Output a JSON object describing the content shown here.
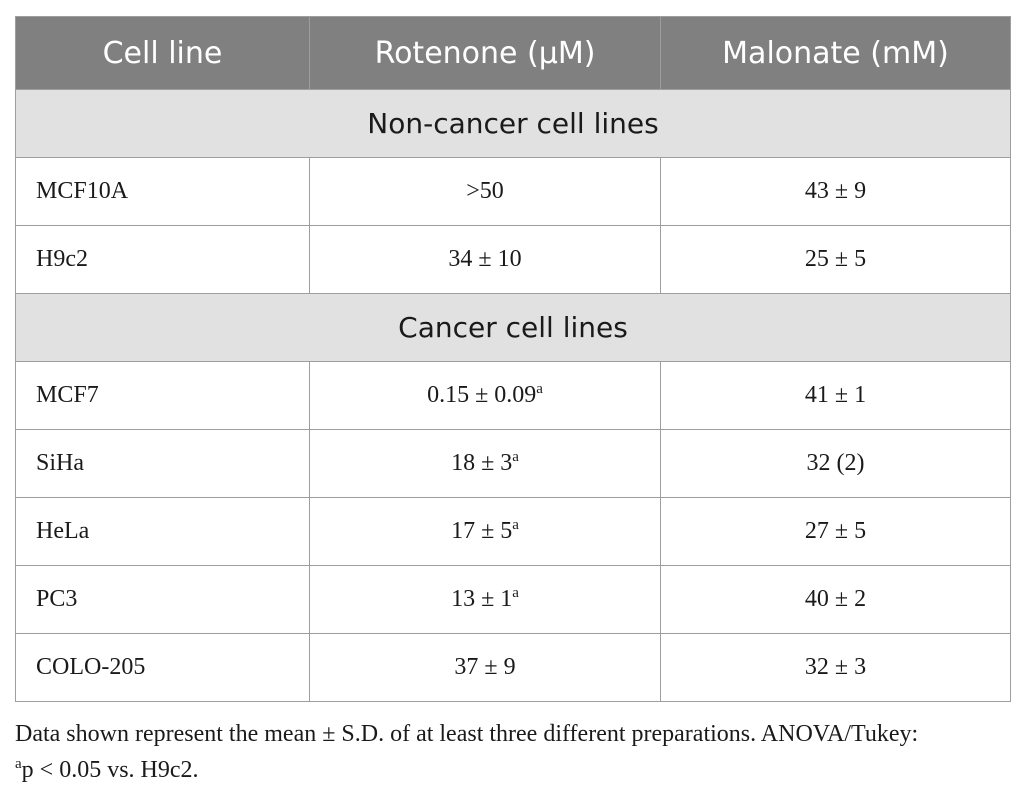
{
  "table": {
    "headers": [
      "Cell line",
      "Rotenone (μM)",
      "Malonate (mM)"
    ],
    "groups": [
      {
        "label": "Non-cancer cell lines",
        "rows": [
          {
            "cell_line": "MCF10A",
            "rotenone": ">50",
            "rotenone_sup": "",
            "malonate": "43 ± 9"
          },
          {
            "cell_line": "H9c2",
            "rotenone": "34 ± 10",
            "rotenone_sup": "",
            "malonate": "25 ± 5"
          }
        ]
      },
      {
        "label": "Cancer cell lines",
        "rows": [
          {
            "cell_line": "MCF7",
            "rotenone": "0.15 ± 0.09",
            "rotenone_sup": "a",
            "malonate": "41 ± 1"
          },
          {
            "cell_line": "SiHa",
            "rotenone": "18 ± 3",
            "rotenone_sup": "a",
            "malonate": "32 (2)"
          },
          {
            "cell_line": "HeLa",
            "rotenone": "17 ± 5",
            "rotenone_sup": "a",
            "malonate": "27 ± 5"
          },
          {
            "cell_line": "PC3",
            "rotenone": "13 ± 1",
            "rotenone_sup": "a",
            "malonate": "40 ± 2"
          },
          {
            "cell_line": "COLO-205",
            "rotenone": "37 ± 9",
            "rotenone_sup": "",
            "malonate": "32 ± 3"
          }
        ]
      }
    ]
  },
  "footnote": {
    "text": "Data shown represent the mean ± S.D. of at least three different preparations. ANOVA/Tukey:",
    "sup": "a",
    "text2": "p < 0.05 vs. H9c2."
  }
}
